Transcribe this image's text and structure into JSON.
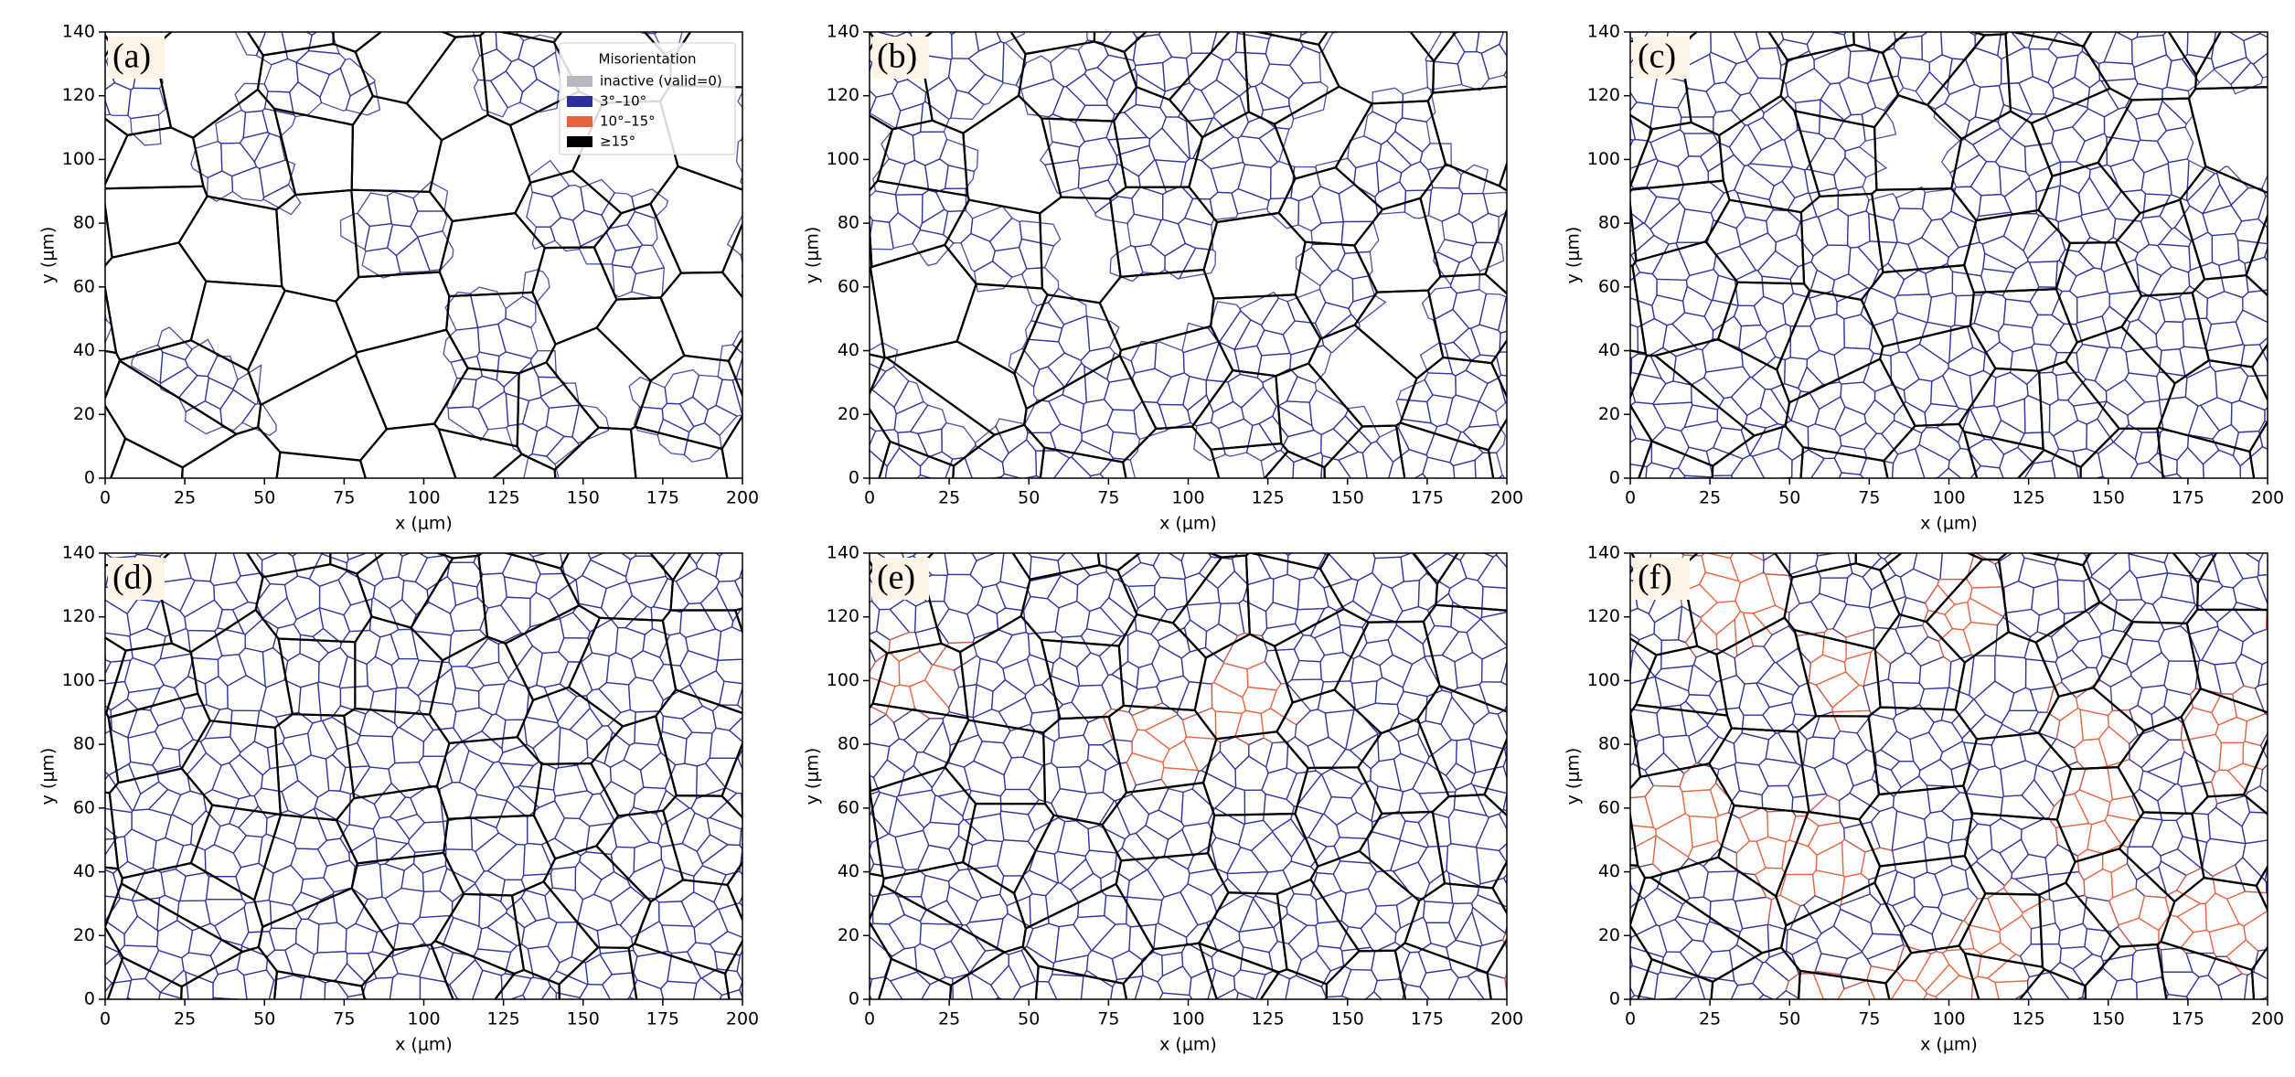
{
  "chart_data": [
    {
      "type": "grainmap",
      "label": "(a)",
      "xlabel": "x (μm)",
      "ylabel": "y (μm)",
      "xlim": [
        0,
        200
      ],
      "ylim": [
        0,
        140
      ],
      "xticks": [
        0,
        25,
        50,
        75,
        100,
        125,
        150,
        175,
        200
      ],
      "yticks": [
        0,
        20,
        40,
        60,
        80,
        100,
        120,
        140
      ],
      "legend": {
        "title": "Misorientation",
        "corner": "upper right",
        "entries": [
          {
            "name": "inactive (valid=0)",
            "color": "#b8b8c0"
          },
          {
            "name": "3°–10°",
            "color": "#2b2f9b"
          },
          {
            "name": "10°–15°",
            "color": "#e8603c"
          },
          {
            "name": "≥15°",
            "color": "#000000"
          }
        ]
      }
    },
    {
      "type": "grainmap",
      "label": "(b)",
      "xlabel": "x (μm)",
      "ylabel": "y (μm)",
      "xlim": [
        0,
        200
      ],
      "ylim": [
        0,
        140
      ],
      "xticks": [
        0,
        25,
        50,
        75,
        100,
        125,
        150,
        175,
        200
      ],
      "yticks": [
        0,
        20,
        40,
        60,
        80,
        100,
        120,
        140
      ]
    },
    {
      "type": "grainmap",
      "label": "(c)",
      "xlabel": "x (μm)",
      "ylabel": "y (μm)",
      "xlim": [
        0,
        200
      ],
      "ylim": [
        0,
        140
      ],
      "xticks": [
        0,
        25,
        50,
        75,
        100,
        125,
        150,
        175,
        200
      ],
      "yticks": [
        0,
        20,
        40,
        60,
        80,
        100,
        120,
        140
      ]
    },
    {
      "type": "grainmap",
      "label": "(d)",
      "xlabel": "x (μm)",
      "ylabel": "y (μm)",
      "xlim": [
        0,
        200
      ],
      "ylim": [
        0,
        140
      ],
      "xticks": [
        0,
        25,
        50,
        75,
        100,
        125,
        150,
        175,
        200
      ],
      "yticks": [
        0,
        20,
        40,
        60,
        80,
        100,
        120,
        140
      ]
    },
    {
      "type": "grainmap",
      "label": "(e)",
      "xlabel": "x (μm)",
      "ylabel": "y (μm)",
      "xlim": [
        0,
        200
      ],
      "ylim": [
        0,
        140
      ],
      "xticks": [
        0,
        25,
        50,
        75,
        100,
        125,
        150,
        175,
        200
      ],
      "yticks": [
        0,
        20,
        40,
        60,
        80,
        100,
        120,
        140
      ]
    },
    {
      "type": "grainmap",
      "label": "(f)",
      "xlabel": "x (μm)",
      "ylabel": "y (μm)",
      "xlim": [
        0,
        200
      ],
      "ylim": [
        0,
        140
      ],
      "xticks": [
        0,
        25,
        50,
        75,
        100,
        125,
        150,
        175,
        200
      ],
      "yticks": [
        0,
        20,
        40,
        60,
        80,
        100,
        120,
        140
      ]
    }
  ]
}
